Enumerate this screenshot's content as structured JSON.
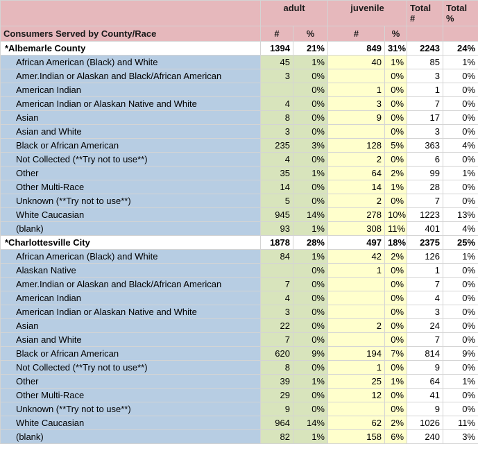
{
  "header": {
    "adult": "adult",
    "juvenile": "juvenile",
    "total_num": "Total #",
    "total_pct": "Total %",
    "title": "Consumers Served by County/Race",
    "num": "#",
    "pct": "%"
  },
  "groups": [
    {
      "name": "*Albemarle County",
      "adult_n": "1394",
      "adult_p": "21%",
      "juv_n": "849",
      "juv_p": "31%",
      "tot_n": "2243",
      "tot_p": "24%",
      "rows": [
        {
          "label": "African American (Black) and White",
          "an": "45",
          "ap": "1%",
          "jn": "40",
          "jp": "1%",
          "tn": "85",
          "tp": "1%"
        },
        {
          "label": "Amer.Indian or Alaskan and Black/African American",
          "an": "3",
          "ap": "0%",
          "jn": "",
          "jp": "0%",
          "tn": "3",
          "tp": "0%"
        },
        {
          "label": "American Indian",
          "an": "",
          "ap": "0%",
          "jn": "1",
          "jp": "0%",
          "tn": "1",
          "tp": "0%"
        },
        {
          "label": "American Indian or Alaskan Native and White",
          "an": "4",
          "ap": "0%",
          "jn": "3",
          "jp": "0%",
          "tn": "7",
          "tp": "0%"
        },
        {
          "label": "Asian",
          "an": "8",
          "ap": "0%",
          "jn": "9",
          "jp": "0%",
          "tn": "17",
          "tp": "0%"
        },
        {
          "label": "Asian and White",
          "an": "3",
          "ap": "0%",
          "jn": "",
          "jp": "0%",
          "tn": "3",
          "tp": "0%"
        },
        {
          "label": "Black or African American",
          "an": "235",
          "ap": "3%",
          "jn": "128",
          "jp": "5%",
          "tn": "363",
          "tp": "4%"
        },
        {
          "label": "Not Collected (**Try not to use**)",
          "an": "4",
          "ap": "0%",
          "jn": "2",
          "jp": "0%",
          "tn": "6",
          "tp": "0%"
        },
        {
          "label": "Other",
          "an": "35",
          "ap": "1%",
          "jn": "64",
          "jp": "2%",
          "tn": "99",
          "tp": "1%"
        },
        {
          "label": "Other Multi-Race",
          "an": "14",
          "ap": "0%",
          "jn": "14",
          "jp": "1%",
          "tn": "28",
          "tp": "0%"
        },
        {
          "label": "Unknown (**Try not to use**)",
          "an": "5",
          "ap": "0%",
          "jn": "2",
          "jp": "0%",
          "tn": "7",
          "tp": "0%"
        },
        {
          "label": "White Caucasian",
          "an": "945",
          "ap": "14%",
          "jn": "278",
          "jp": "10%",
          "tn": "1223",
          "tp": "13%"
        },
        {
          "label": "(blank)",
          "an": "93",
          "ap": "1%",
          "jn": "308",
          "jp": "11%",
          "tn": "401",
          "tp": "4%"
        }
      ]
    },
    {
      "name": "*Charlottesville City",
      "adult_n": "1878",
      "adult_p": "28%",
      "juv_n": "497",
      "juv_p": "18%",
      "tot_n": "2375",
      "tot_p": "25%",
      "rows": [
        {
          "label": "African American (Black) and White",
          "an": "84",
          "ap": "1%",
          "jn": "42",
          "jp": "2%",
          "tn": "126",
          "tp": "1%"
        },
        {
          "label": "Alaskan Native",
          "an": "",
          "ap": "0%",
          "jn": "1",
          "jp": "0%",
          "tn": "1",
          "tp": "0%"
        },
        {
          "label": "Amer.Indian or Alaskan and Black/African American",
          "an": "7",
          "ap": "0%",
          "jn": "",
          "jp": "0%",
          "tn": "7",
          "tp": "0%"
        },
        {
          "label": "American Indian",
          "an": "4",
          "ap": "0%",
          "jn": "",
          "jp": "0%",
          "tn": "4",
          "tp": "0%"
        },
        {
          "label": "American Indian or Alaskan Native and White",
          "an": "3",
          "ap": "0%",
          "jn": "",
          "jp": "0%",
          "tn": "3",
          "tp": "0%"
        },
        {
          "label": "Asian",
          "an": "22",
          "ap": "0%",
          "jn": "2",
          "jp": "0%",
          "tn": "24",
          "tp": "0%"
        },
        {
          "label": "Asian and White",
          "an": "7",
          "ap": "0%",
          "jn": "",
          "jp": "0%",
          "tn": "7",
          "tp": "0%"
        },
        {
          "label": "Black or African American",
          "an": "620",
          "ap": "9%",
          "jn": "194",
          "jp": "7%",
          "tn": "814",
          "tp": "9%"
        },
        {
          "label": "Not Collected (**Try not to use**)",
          "an": "8",
          "ap": "0%",
          "jn": "1",
          "jp": "0%",
          "tn": "9",
          "tp": "0%"
        },
        {
          "label": "Other",
          "an": "39",
          "ap": "1%",
          "jn": "25",
          "jp": "1%",
          "tn": "64",
          "tp": "1%"
        },
        {
          "label": "Other Multi-Race",
          "an": "29",
          "ap": "0%",
          "jn": "12",
          "jp": "0%",
          "tn": "41",
          "tp": "0%"
        },
        {
          "label": "Unknown (**Try not to use**)",
          "an": "9",
          "ap": "0%",
          "jn": "",
          "jp": "0%",
          "tn": "9",
          "tp": "0%"
        },
        {
          "label": "White Caucasian",
          "an": "964",
          "ap": "14%",
          "jn": "62",
          "jp": "2%",
          "tn": "1026",
          "tp": "11%"
        },
        {
          "label": "(blank)",
          "an": "82",
          "ap": "1%",
          "jn": "158",
          "jp": "6%",
          "tn": "240",
          "tp": "3%"
        }
      ]
    }
  ]
}
